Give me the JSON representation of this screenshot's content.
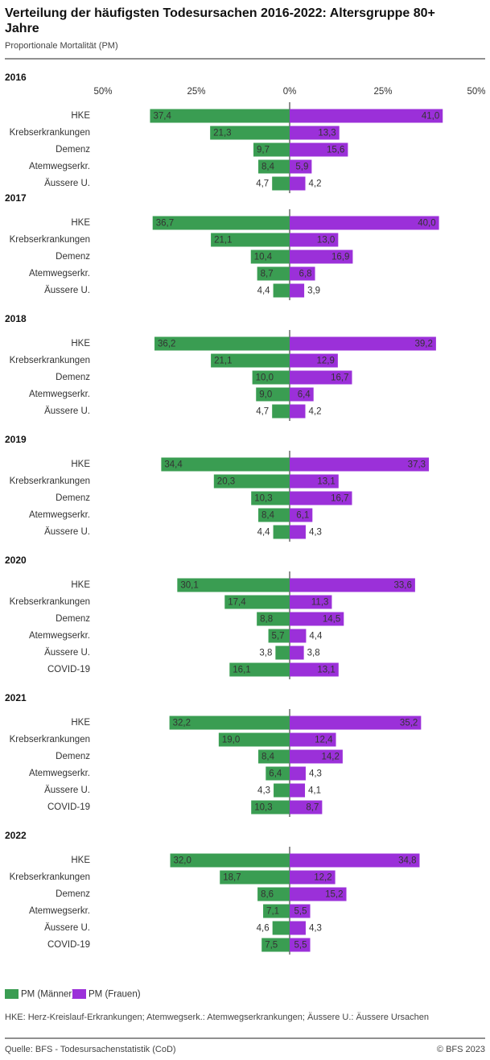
{
  "header": {
    "title_line1": "Verteilung der häufigsten Todesursachen 2016-2022: Altersgruppe 80+",
    "title_line2": "Jahre",
    "subtitle": "Proportionale Mortalität (PM)"
  },
  "chart_data": {
    "type": "butterfly",
    "xlim": [
      -50,
      50
    ],
    "xticks": [
      {
        "value": -50,
        "label": "50%"
      },
      {
        "value": -25,
        "label": "25%"
      },
      {
        "value": 0,
        "label": "0%"
      },
      {
        "value": 25,
        "label": "25%"
      },
      {
        "value": 50,
        "label": "50%"
      }
    ],
    "series": [
      {
        "name": "PM (Männer)",
        "color": "#3a9d52",
        "side": "left"
      },
      {
        "name": "PM (Frauen)",
        "color": "#9b30d9",
        "side": "right"
      }
    ],
    "panels": [
      {
        "title": "2016",
        "categories": [
          "HKE",
          "Krebserkrankungen",
          "Demenz",
          "Atemwegserkr.",
          "Äussere U."
        ],
        "values": [
          [
            37.4,
            21.3,
            9.7,
            8.4,
            4.7
          ],
          [
            41.0,
            13.3,
            15.6,
            5.9,
            4.2
          ]
        ],
        "value_labels": [
          [
            "37,4",
            "21,3",
            "9,7",
            "8,4",
            "4,7"
          ],
          [
            "41,0",
            "13,3",
            "15,6",
            "5,9",
            "4,2"
          ]
        ]
      },
      {
        "title": "2017",
        "categories": [
          "HKE",
          "Krebserkrankungen",
          "Demenz",
          "Atemwegserkr.",
          "Äussere U."
        ],
        "values": [
          [
            36.7,
            21.1,
            10.4,
            8.7,
            4.4
          ],
          [
            40.0,
            13.0,
            16.9,
            6.8,
            3.9
          ]
        ],
        "value_labels": [
          [
            "36,7",
            "21,1",
            "10,4",
            "8,7",
            "4,4"
          ],
          [
            "40,0",
            "13,0",
            "16,9",
            "6,8",
            "3,9"
          ]
        ]
      },
      {
        "title": "2018",
        "categories": [
          "HKE",
          "Krebserkrankungen",
          "Demenz",
          "Atemwegserkr.",
          "Äussere U."
        ],
        "values": [
          [
            36.2,
            21.1,
            10.0,
            9.0,
            4.7
          ],
          [
            39.2,
            12.9,
            16.7,
            6.4,
            4.2
          ]
        ],
        "value_labels": [
          [
            "36,2",
            "21,1",
            "10,0",
            "9,0",
            "4,7"
          ],
          [
            "39,2",
            "12,9",
            "16,7",
            "6,4",
            "4,2"
          ]
        ]
      },
      {
        "title": "2019",
        "categories": [
          "HKE",
          "Krebserkrankungen",
          "Demenz",
          "Atemwegserkr.",
          "Äussere U."
        ],
        "values": [
          [
            34.4,
            20.3,
            10.3,
            8.4,
            4.4
          ],
          [
            37.3,
            13.1,
            16.7,
            6.1,
            4.3
          ]
        ],
        "value_labels": [
          [
            "34,4",
            "20,3",
            "10,3",
            "8,4",
            "4,4"
          ],
          [
            "37,3",
            "13,1",
            "16,7",
            "6,1",
            "4,3"
          ]
        ]
      },
      {
        "title": "2020",
        "categories": [
          "HKE",
          "Krebserkrankungen",
          "Demenz",
          "Atemwegserkr.",
          "Äussere U.",
          "COVID-19"
        ],
        "values": [
          [
            30.1,
            17.4,
            8.8,
            5.7,
            3.8,
            16.1
          ],
          [
            33.6,
            11.3,
            14.5,
            4.4,
            3.8,
            13.1
          ]
        ],
        "value_labels": [
          [
            "30,1",
            "17,4",
            "8,8",
            "5,7",
            "3,8",
            "16,1"
          ],
          [
            "33,6",
            "11,3",
            "14,5",
            "4,4",
            "3,8",
            "13,1"
          ]
        ]
      },
      {
        "title": "2021",
        "categories": [
          "HKE",
          "Krebserkrankungen",
          "Demenz",
          "Atemwegserkr.",
          "Äussere U.",
          "COVID-19"
        ],
        "values": [
          [
            32.2,
            19.0,
            8.4,
            6.4,
            4.3,
            10.3
          ],
          [
            35.2,
            12.4,
            14.2,
            4.3,
            4.1,
            8.7
          ]
        ],
        "value_labels": [
          [
            "32,2",
            "19,0",
            "8,4",
            "6,4",
            "4,3",
            "10,3"
          ],
          [
            "35,2",
            "12,4",
            "14,2",
            "4,3",
            "4,1",
            "8,7"
          ]
        ]
      },
      {
        "title": "2022",
        "categories": [
          "HKE",
          "Krebserkrankungen",
          "Demenz",
          "Atemwegserkr.",
          "Äussere U.",
          "COVID-19"
        ],
        "values": [
          [
            32.0,
            18.7,
            8.6,
            7.1,
            4.6,
            7.5
          ],
          [
            34.8,
            12.2,
            15.2,
            5.5,
            4.3,
            5.5
          ]
        ],
        "value_labels": [
          [
            "32,0",
            "18,7",
            "8,6",
            "7,1",
            "4,6",
            "7,5"
          ],
          [
            "34,8",
            "12,2",
            "15,2",
            "5,5",
            "4,3",
            "5,5"
          ]
        ]
      }
    ]
  },
  "footer": {
    "note": "HKE: Herz-Kreislauf-Erkrankungen; Atemwegserk.: Atemwegserkrankungen; Äussere U.: Äussere Ursachen",
    "source": "Quelle: BFS - Todesursachenstatistik (CoD)",
    "copyright": "© BFS 2023"
  }
}
